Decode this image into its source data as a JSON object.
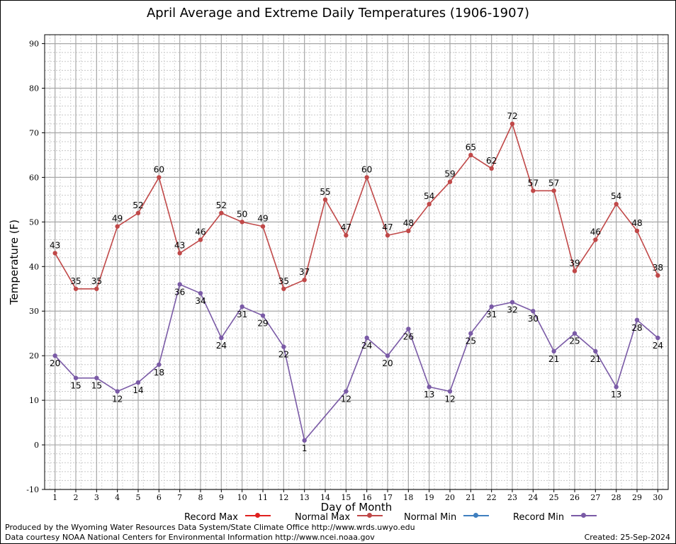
{
  "title": "April Average and Extreme Daily Temperatures (1906-1907)",
  "footer": {
    "produced_by": "Produced by the Wyoming Water Resources Data System/State Climate Office http://www.wrds.uwyo.edu",
    "courtesy": "Data courtesy NOAA National Centers for Environmental Information http://www.ncei.noaa.gov",
    "created": "Created: 25-Sep-2024"
  },
  "legend": [
    {
      "label": "Record Max",
      "color": "#e0201e"
    },
    {
      "label": "Normal Max",
      "color": "#c04848"
    },
    {
      "label": "Normal Min",
      "color": "#3f7fbf"
    },
    {
      "label": "Record Min",
      "color": "#7a5aa6"
    }
  ],
  "chart_data": {
    "type": "line",
    "title": "April Average and Extreme Daily Temperatures (1906-1907)",
    "xlabel": "Day of Month",
    "ylabel": "Temperature (F)",
    "xlim": [
      0.5,
      30.5
    ],
    "ylim": [
      -10,
      92
    ],
    "yticks": [
      -10,
      0,
      10,
      20,
      30,
      40,
      50,
      60,
      70,
      80,
      90
    ],
    "x": [
      1,
      2,
      3,
      4,
      5,
      6,
      7,
      8,
      9,
      10,
      11,
      12,
      13,
      14,
      15,
      16,
      17,
      18,
      19,
      20,
      21,
      22,
      23,
      24,
      25,
      26,
      27,
      28,
      29,
      30
    ],
    "grid": true,
    "legend_position": "bottom",
    "series": [
      {
        "name": "Normal Max",
        "color": "#c04848",
        "labels": "above",
        "values": [
          43,
          35,
          35,
          49,
          52,
          60,
          43,
          46,
          52,
          50,
          49,
          35,
          37,
          55,
          47,
          60,
          47,
          48,
          54,
          59,
          65,
          62,
          72,
          57,
          57,
          39,
          46,
          54,
          48,
          38
        ]
      },
      {
        "name": "Record Min",
        "color": "#7a5aa6",
        "labels": "below",
        "values": [
          20,
          15,
          15,
          12,
          14,
          18,
          36,
          34,
          24,
          31,
          29,
          22,
          1,
          null,
          12,
          24,
          20,
          26,
          13,
          12,
          25,
          31,
          32,
          30,
          21,
          25,
          21,
          13,
          28,
          24
        ]
      }
    ]
  }
}
